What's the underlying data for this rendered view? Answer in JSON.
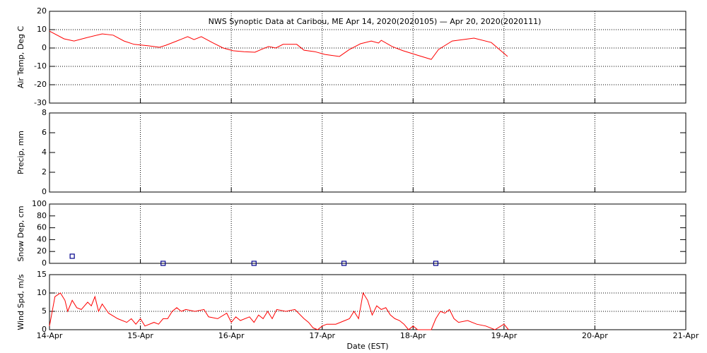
{
  "chart_data": [
    {
      "type": "line",
      "title": "NWS Synoptic Data at Caribou, ME   Apr 14, 2020(2020105) — Apr 20, 2020(2020111)",
      "y_label": "Air Temp, Deg C",
      "ylim": [
        -30,
        20
      ],
      "yticks": [
        -30,
        -20,
        -10,
        0,
        10,
        20
      ],
      "xlim": [
        14,
        21
      ],
      "xticks": [
        14,
        15,
        16,
        17,
        18,
        19,
        20,
        21
      ],
      "grid": true,
      "series": [
        {
          "color": "#ff0000",
          "x": [
            14.0,
            14.16,
            14.27,
            14.39,
            14.58,
            14.7,
            14.82,
            14.93,
            15.09,
            15.21,
            15.28,
            15.4,
            15.52,
            15.59,
            15.67,
            15.79,
            15.91,
            16.02,
            16.14,
            16.26,
            16.33,
            16.41,
            16.49,
            16.57,
            16.72,
            16.8,
            16.92,
            17.03,
            17.19,
            17.3,
            17.42,
            17.54,
            17.62,
            17.65,
            17.77,
            17.89,
            18.04,
            18.2,
            18.28,
            18.43,
            18.67,
            18.86,
            19.04
          ],
          "values": [
            9.2,
            5,
            3.8,
            5.4,
            7.7,
            7,
            3.8,
            2,
            1.2,
            0.4,
            1.5,
            3.8,
            6.2,
            4.6,
            6.2,
            3,
            0,
            -1.5,
            -2,
            -2.3,
            -0.8,
            0.8,
            0,
            2,
            2,
            -1.2,
            -2,
            -3.5,
            -4.6,
            -0.8,
            2.3,
            3.8,
            2.7,
            4.2,
            0.8,
            -1.5,
            -3.8,
            -6.2,
            -0.8,
            3.8,
            5.4,
            3,
            -4.6
          ]
        }
      ]
    },
    {
      "type": "line",
      "y_label": "Precip, mm",
      "ylim": [
        0,
        8
      ],
      "yticks": [
        0,
        2,
        4,
        6,
        8
      ],
      "xlim": [
        14,
        21
      ],
      "xticks": [
        14,
        15,
        16,
        17,
        18,
        19,
        20,
        21
      ],
      "grid": false,
      "series": []
    },
    {
      "type": "scatter",
      "y_label": "Snow Dep, cm",
      "ylim": [
        0,
        100
      ],
      "yticks": [
        0,
        20,
        40,
        60,
        80,
        100
      ],
      "xlim": [
        14,
        21
      ],
      "xticks": [
        14,
        15,
        16,
        17,
        18,
        19,
        20,
        21
      ],
      "grid": false,
      "series": [
        {
          "color": "#00008b",
          "x": [
            14.25,
            15.25,
            16.25,
            17.24,
            18.25
          ],
          "values": [
            12,
            0,
            0,
            0,
            0
          ]
        }
      ]
    },
    {
      "type": "line",
      "y_label": "Wind Spd, m/s",
      "x_label": "Date (EST)",
      "ylim": [
        0,
        15
      ],
      "yticks": [
        0,
        5,
        10,
        15
      ],
      "xlim": [
        14,
        21
      ],
      "xticks": [
        {
          "value": 14,
          "label": "14-Apr"
        },
        {
          "value": 15,
          "label": "15-Apr"
        },
        {
          "value": 16,
          "label": "16-Apr"
        },
        {
          "value": 17,
          "label": "17-Apr"
        },
        {
          "value": 18,
          "label": "18-Apr"
        },
        {
          "value": 19,
          "label": "19-Apr"
        },
        {
          "value": 20,
          "label": "20-Apr"
        },
        {
          "value": 21,
          "label": "21-Apr"
        }
      ],
      "grid": true,
      "series": [
        {
          "color": "#ff0000",
          "x": [
            14.0,
            14.06,
            14.12,
            14.17,
            14.2,
            14.25,
            14.3,
            14.35,
            14.42,
            14.46,
            14.5,
            14.54,
            14.58,
            14.65,
            14.75,
            14.85,
            14.9,
            14.95,
            15.0,
            15.05,
            15.15,
            15.2,
            15.25,
            15.3,
            15.35,
            15.4,
            15.45,
            15.5,
            15.6,
            15.7,
            15.75,
            15.85,
            15.95,
            16.0,
            16.05,
            16.1,
            16.2,
            16.25,
            16.3,
            16.35,
            16.4,
            16.45,
            16.5,
            16.6,
            16.7,
            16.8,
            16.85,
            16.9,
            16.95,
            17.0,
            17.05,
            17.15,
            17.25,
            17.3,
            17.35,
            17.4,
            17.45,
            17.5,
            17.55,
            17.6,
            17.65,
            17.7,
            17.75,
            17.8,
            17.85,
            17.9,
            17.95,
            18.0,
            18.05,
            18.2,
            18.25,
            18.3,
            18.35,
            18.4,
            18.45,
            18.5,
            18.6,
            18.7,
            18.8,
            18.9,
            19.0,
            19.05
          ],
          "values": [
            1,
            9,
            10,
            8,
            5,
            8,
            6,
            5.5,
            7.5,
            6.5,
            9,
            5,
            7,
            4.5,
            3,
            2,
            3,
            1.5,
            3,
            1,
            2,
            1.5,
            3,
            3,
            5,
            6,
            5,
            5.5,
            5,
            5.5,
            3.5,
            3,
            4.5,
            2,
            3.5,
            2.5,
            3.5,
            2,
            4,
            3,
            5,
            3,
            5.5,
            5,
            5.5,
            3,
            2,
            0.5,
            0,
            1,
            1.5,
            1.5,
            2.5,
            3,
            5,
            3,
            10,
            8,
            4,
            6.5,
            5.5,
            6,
            4,
            3,
            2.5,
            1.5,
            0,
            1,
            0,
            0,
            3,
            5,
            4.5,
            5.5,
            3,
            2,
            2.5,
            1.5,
            1,
            0,
            1.5,
            0
          ]
        }
      ]
    }
  ]
}
